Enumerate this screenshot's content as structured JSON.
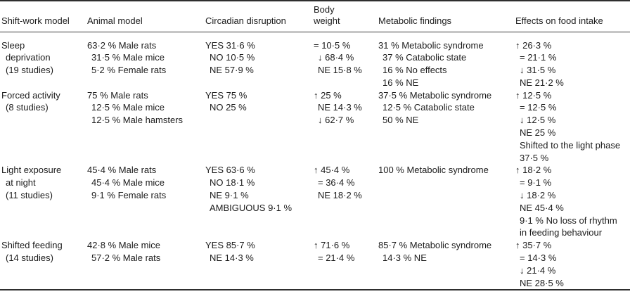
{
  "colors": {
    "background": "#ffffff",
    "text": "#1c1c1c",
    "rule": "#2e2e2e"
  },
  "table": {
    "columns": [
      {
        "key": "shift-work-model",
        "lines": [
          "Shift-work model"
        ]
      },
      {
        "key": "animal-model",
        "lines": [
          "Animal model"
        ]
      },
      {
        "key": "circadian-disruption",
        "lines": [
          "Circadian disruption"
        ]
      },
      {
        "key": "body-weight",
        "lines": [
          "Body",
          "weight"
        ]
      },
      {
        "key": "metabolic-findings",
        "lines": [
          "Metabolic findings"
        ]
      },
      {
        "key": "effects-on-food-intake",
        "lines": [
          "Effects on food intake"
        ]
      }
    ],
    "rows": [
      {
        "cells": [
          [
            "Sleep",
            "deprivation",
            "(19 studies)"
          ],
          [
            "63·2 % Male rats",
            "31·5 % Male mice",
            "5·2 % Female rats"
          ],
          [
            "YES 31·6 %",
            "NO 10·5 %",
            "NE 57·9 %"
          ],
          [
            "= 10·5 %",
            "↓ 68·4 %",
            "NE 15·8 %"
          ],
          [
            "31 % Metabolic syndrome",
            "37 % Catabolic state",
            "16 % No effects",
            "16 % NE"
          ],
          [
            "↑ 26·3 %",
            "= 21·1 %",
            "↓ 31·5 %",
            "NE 21·2 %"
          ]
        ]
      },
      {
        "cells": [
          [
            "Forced activity",
            "(8 studies)"
          ],
          [
            "75 % Male rats",
            "12·5 % Male mice",
            "12·5 % Male hamsters"
          ],
          [
            "YES 75 %",
            "NO 25 %"
          ],
          [
            "↑ 25 %",
            "NE 14·3 %",
            "↓ 62·7 %"
          ],
          [
            "37·5 % Metabolic syndrome",
            "12·5 % Catabolic state",
            "50 % NE"
          ],
          [
            "↑ 12·5 %",
            "= 12·5 %",
            "↓ 12·5 %",
            "NE 25 %",
            "Shifted to the light phase",
            "37·5 %"
          ]
        ]
      },
      {
        "cells": [
          [
            "Light exposure",
            "at night",
            "(11 studies)"
          ],
          [
            "45·4 % Male rats",
            "45·4 % Male mice",
            "9·1 % Female rats"
          ],
          [
            "YES 63·6 %",
            "NO 18·1 %",
            "NE 9·1 %",
            "AMBIGUOUS 9·1 %"
          ],
          [
            "↑ 45·4 %",
            "= 36·4 %",
            "NE 18·2 %"
          ],
          [
            "100 % Metabolic syndrome"
          ],
          [
            "↑ 18·2 %",
            "= 9·1 %",
            "↓ 18·2 %",
            "NE 45·4 %",
            "9·1 % No loss of rhythm",
            "in feeding behaviour"
          ]
        ]
      },
      {
        "cells": [
          [
            "Shifted feeding",
            "(14 studies)"
          ],
          [
            "42·8 % Male mice",
            "57·2 % Male rats"
          ],
          [
            "YES 85·7 %",
            "NE 14·3 %"
          ],
          [
            "↑ 71·6 %",
            "= 21·4 %"
          ],
          [
            "85·7 % Metabolic syndrome",
            "14·3 % NE"
          ],
          [
            "↑ 35·7 %",
            "= 14·3 %",
            "↓ 21·4 %",
            "NE 28·5 %"
          ]
        ]
      }
    ]
  }
}
